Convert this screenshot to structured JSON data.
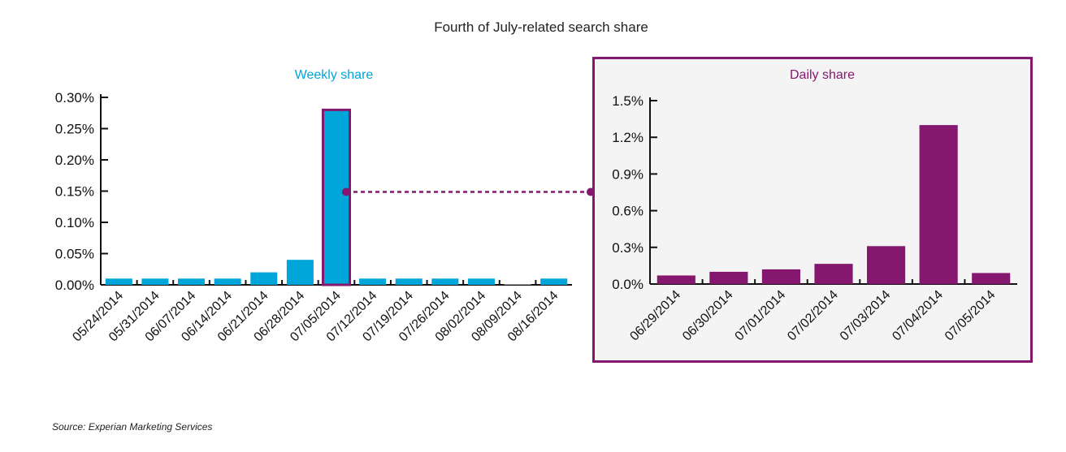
{
  "title": "Fourth of July-related search share",
  "source": "Source: Experian Marketing Services",
  "colors": {
    "weekly": "#00a5d9",
    "daily": "#85176f",
    "highlight": "#85176f",
    "panel_bg": "#f4f4f4"
  },
  "chart_data": [
    {
      "type": "bar",
      "title": "Weekly share",
      "categories": [
        "05/24/2014",
        "05/31/2014",
        "06/07/2014",
        "06/14/2014",
        "06/21/2014",
        "06/28/2014",
        "07/05/2014",
        "07/12/2014",
        "07/19/2014",
        "07/26/2014",
        "08/02/2014",
        "08/09/2014",
        "08/16/2014"
      ],
      "values": [
        0.01,
        0.01,
        0.01,
        0.01,
        0.02,
        0.04,
        0.28,
        0.01,
        0.01,
        0.01,
        0.01,
        0.0005,
        0.01
      ],
      "highlight": "07/05/2014",
      "ylim": [
        0,
        0.3
      ],
      "yticks": [
        0,
        0.05,
        0.1,
        0.15,
        0.2,
        0.25,
        0.3
      ],
      "ytick_labels": [
        "0.00%",
        "0.05%",
        "0.10%",
        "0.15%",
        "0.20%",
        "0.25%",
        "0.30%"
      ],
      "unit": "%"
    },
    {
      "type": "bar",
      "title": "Daily share",
      "categories": [
        "06/29/2014",
        "06/30/2014",
        "07/01/2014",
        "07/02/2014",
        "07/03/2014",
        "07/04/2014",
        "07/05/2014"
      ],
      "values": [
        0.07,
        0.1,
        0.12,
        0.165,
        0.31,
        1.3,
        0.09
      ],
      "ylim": [
        0,
        1.5
      ],
      "yticks": [
        0,
        0.3,
        0.6,
        0.9,
        1.2,
        1.5
      ],
      "ytick_labels": [
        "0.0%",
        "0.3%",
        "0.6%",
        "0.9%",
        "1.2%",
        "1.5%"
      ],
      "unit": "%"
    }
  ]
}
